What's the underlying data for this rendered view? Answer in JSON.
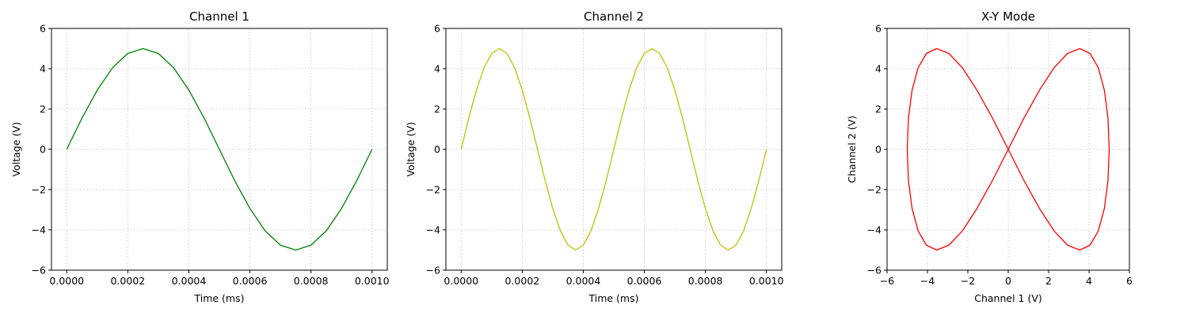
{
  "colors": {
    "ch1": "#008000",
    "ch2": "#bfbf00",
    "xy": "#ff0000"
  },
  "chart_data": [
    {
      "type": "line",
      "title": "Channel 1",
      "xlabel": "Time (ms)",
      "ylabel": "Voltage (V)",
      "xlim": [
        -5e-05,
        0.00105
      ],
      "ylim": [
        -6,
        6
      ],
      "xticks": [
        0,
        0.0002,
        0.0004,
        0.0006,
        0.0008,
        0.001
      ],
      "xtick_labels": [
        "0.0000",
        "0.0002",
        "0.0004",
        "0.0006",
        "0.0008",
        "0.0010"
      ],
      "yticks": [
        -6,
        -4,
        -2,
        0,
        2,
        4,
        6
      ],
      "ytick_labels": [
        "−6",
        "−4",
        "−2",
        "0",
        "2",
        "4",
        "6"
      ],
      "grid": true,
      "series": [
        {
          "color": "#008000",
          "x": [
            0,
            5e-05,
            0.0001,
            0.00015,
            0.0002,
            0.00025,
            0.0003,
            0.00035,
            0.0004,
            0.00045,
            0.0005,
            0.00055,
            0.0006,
            0.00065,
            0.0007,
            0.00075,
            0.0008,
            0.00085,
            0.0009,
            0.00095,
            0.001
          ],
          "y": [
            0,
            1.55,
            2.94,
            4.05,
            4.76,
            5,
            4.76,
            4.05,
            2.94,
            1.55,
            0,
            -1.55,
            -2.94,
            -4.05,
            -4.76,
            -5,
            -4.76,
            -4.05,
            -2.94,
            -1.55,
            0
          ]
        }
      ]
    },
    {
      "type": "line",
      "title": "Channel 2",
      "xlabel": "Time (ms)",
      "ylabel": "Voltage (V)",
      "xlim": [
        -5e-05,
        0.00105
      ],
      "ylim": [
        -6,
        6
      ],
      "xticks": [
        0,
        0.0002,
        0.0004,
        0.0006,
        0.0008,
        0.001
      ],
      "xtick_labels": [
        "0.0000",
        "0.0002",
        "0.0004",
        "0.0006",
        "0.0008",
        "0.0010"
      ],
      "yticks": [
        -6,
        -4,
        -2,
        0,
        2,
        4,
        6
      ],
      "ytick_labels": [
        "−6",
        "−4",
        "−2",
        "0",
        "2",
        "4",
        "6"
      ],
      "grid": true,
      "series": [
        {
          "color": "#bfbf00",
          "x": [
            0,
            2.5e-05,
            5e-05,
            7.5e-05,
            0.0001,
            0.000125,
            0.00015,
            0.000175,
            0.0002,
            0.000225,
            0.00025,
            0.000275,
            0.0003,
            0.000325,
            0.00035,
            0.000375,
            0.0004,
            0.000425,
            0.00045,
            0.000475,
            0.0005,
            0.000525,
            0.00055,
            0.000575,
            0.0006,
            0.000625,
            0.00065,
            0.000675,
            0.0007,
            0.000725,
            0.00075,
            0.000775,
            0.0008,
            0.000825,
            0.00085,
            0.000875,
            0.0009,
            0.000925,
            0.00095,
            0.000975,
            0.001
          ],
          "y": [
            0,
            1.55,
            2.94,
            4.05,
            4.76,
            5,
            4.76,
            4.05,
            2.94,
            1.55,
            0,
            -1.55,
            -2.94,
            -4.05,
            -4.76,
            -5,
            -4.76,
            -4.05,
            -2.94,
            -1.55,
            0,
            1.55,
            2.94,
            4.05,
            4.76,
            5,
            4.76,
            4.05,
            2.94,
            1.55,
            0,
            -1.55,
            -2.94,
            -4.05,
            -4.76,
            -5,
            -4.76,
            -4.05,
            -2.94,
            -1.55,
            0
          ]
        }
      ]
    },
    {
      "type": "line",
      "title": "X-Y Mode",
      "xlabel": "Channel 1 (V)",
      "ylabel": "Channel 2 (V)",
      "xlim": [
        -6,
        6
      ],
      "ylim": [
        -6,
        6
      ],
      "xticks": [
        -6,
        -4,
        -2,
        0,
        2,
        4,
        6
      ],
      "xtick_labels": [
        "−6",
        "−4",
        "−2",
        "0",
        "2",
        "4",
        "6"
      ],
      "yticks": [
        -6,
        -4,
        -2,
        0,
        2,
        4,
        6
      ],
      "ytick_labels": [
        "−6",
        "−4",
        "−2",
        "0",
        "2",
        "4",
        "6"
      ],
      "grid": true,
      "series": [
        {
          "color": "#ff0000",
          "x": [
            0,
            0.78,
            1.55,
            2.27,
            2.94,
            3.54,
            4.05,
            4.46,
            4.76,
            4.94,
            5,
            4.94,
            4.76,
            4.46,
            4.05,
            3.54,
            2.94,
            2.27,
            1.55,
            0.78,
            0,
            -0.78,
            -1.55,
            -2.27,
            -2.94,
            -3.54,
            -4.05,
            -4.46,
            -4.76,
            -4.94,
            -5,
            -4.94,
            -4.76,
            -4.46,
            -4.05,
            -3.54,
            -2.94,
            -2.27,
            -1.55,
            -0.78,
            0
          ],
          "y": [
            0,
            1.55,
            2.94,
            4.05,
            4.76,
            5,
            4.76,
            4.05,
            2.94,
            1.55,
            0,
            -1.55,
            -2.94,
            -4.05,
            -4.76,
            -5,
            -4.76,
            -4.05,
            -2.94,
            -1.55,
            0,
            1.55,
            2.94,
            4.05,
            4.76,
            5,
            4.76,
            4.05,
            2.94,
            1.55,
            0,
            -1.55,
            -2.94,
            -4.05,
            -4.76,
            -5,
            -4.76,
            -4.05,
            -2.94,
            -1.55,
            0
          ]
        }
      ]
    }
  ]
}
